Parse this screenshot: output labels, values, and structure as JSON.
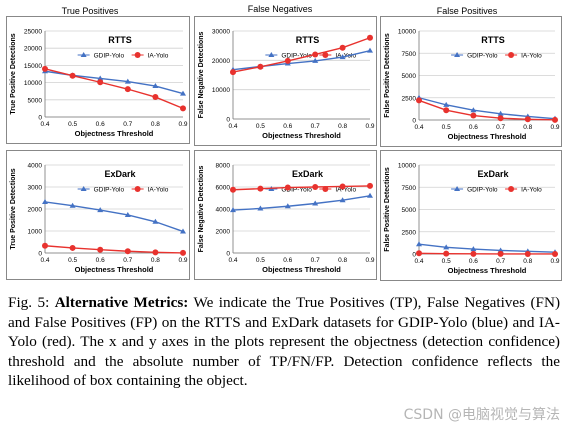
{
  "columns": [
    "True Positives",
    "False Negatives",
    "False Positives"
  ],
  "xlabel": "Objectness Threshold",
  "legend": {
    "blue": "GDIP-Yolo",
    "red": "IA-Yolo"
  },
  "colors": {
    "blue": "#4472c4",
    "red": "#e8322e"
  },
  "chart_data": [
    {
      "type": "line",
      "title": "RTTS",
      "ylabel": "True Positive Detections",
      "x": [
        0.4,
        0.5,
        0.6,
        0.7,
        0.8,
        0.9
      ],
      "xticks": [
        "0.4",
        "0.5",
        "0.6",
        "0.7",
        "0.8",
        "0.9"
      ],
      "ylim": [
        0,
        25000
      ],
      "yticks": [
        0,
        5000,
        10000,
        15000,
        20000,
        25000
      ],
      "ytick_labels": [
        "0",
        "5000",
        "10000",
        "15000",
        "20000",
        "25000"
      ],
      "series": [
        {
          "name": "GDIP-Yolo",
          "color": "blue",
          "marker": "triangle",
          "values": [
            13300,
            12100,
            11200,
            10300,
            9000,
            6800
          ]
        },
        {
          "name": "IA-Yolo",
          "color": "red",
          "marker": "circle",
          "values": [
            14000,
            12000,
            10100,
            8100,
            5800,
            2500
          ]
        }
      ]
    },
    {
      "type": "line",
      "title": "RTTS",
      "ylabel": "False Negative Detections",
      "x": [
        0.4,
        0.5,
        0.6,
        0.7,
        0.8,
        0.9
      ],
      "xticks": [
        "0.4",
        "0.5",
        "0.6",
        "0.7",
        "0.8",
        "0.9"
      ],
      "ylim": [
        0,
        30000
      ],
      "yticks": [
        0,
        10000,
        20000,
        30000
      ],
      "ytick_labels": [
        "0",
        "10000",
        "20000",
        "30000"
      ],
      "series": [
        {
          "name": "GDIP-Yolo",
          "color": "blue",
          "marker": "triangle",
          "values": [
            16800,
            17900,
            18900,
            19800,
            21100,
            23300
          ]
        },
        {
          "name": "IA-Yolo",
          "color": "red",
          "marker": "circle",
          "values": [
            16000,
            17800,
            19800,
            22000,
            24300,
            27700
          ]
        }
      ]
    },
    {
      "type": "line",
      "title": "RTTS",
      "ylabel": "False Positive Detections",
      "x": [
        0.4,
        0.5,
        0.6,
        0.7,
        0.8,
        0.9
      ],
      "xticks": [
        "0.4",
        "0.5",
        "0.6",
        "0.7",
        "0.8",
        "0.9"
      ],
      "ylim": [
        0,
        10000
      ],
      "yticks": [
        0,
        2500,
        5000,
        7500,
        10000
      ],
      "ytick_labels": [
        "0",
        "2500",
        "5000",
        "7500",
        "10000"
      ],
      "series": [
        {
          "name": "GDIP-Yolo",
          "color": "blue",
          "marker": "triangle",
          "values": [
            2500,
            1700,
            1100,
            700,
            400,
            150
          ]
        },
        {
          "name": "IA-Yolo",
          "color": "red",
          "marker": "circle",
          "values": [
            2200,
            1100,
            500,
            200,
            80,
            20
          ]
        }
      ]
    },
    {
      "type": "line",
      "title": "ExDark",
      "ylabel": "True Positive Detections",
      "x": [
        0.4,
        0.5,
        0.6,
        0.7,
        0.8,
        0.9
      ],
      "xticks": [
        "0.4",
        "0.5",
        "0.6",
        "0.7",
        "0.8",
        "0.9"
      ],
      "ylim": [
        0,
        4000
      ],
      "yticks": [
        0,
        1000,
        2000,
        3000,
        4000
      ],
      "ytick_labels": [
        "0",
        "1000",
        "2000",
        "3000",
        "4000"
      ],
      "series": [
        {
          "name": "GDIP-Yolo",
          "color": "blue",
          "marker": "triangle",
          "values": [
            2320,
            2150,
            1950,
            1730,
            1420,
            980
          ]
        },
        {
          "name": "IA-Yolo",
          "color": "red",
          "marker": "circle",
          "values": [
            330,
            230,
            150,
            80,
            30,
            5
          ]
        }
      ]
    },
    {
      "type": "line",
      "title": "ExDark",
      "ylabel": "False Negative Detections",
      "x": [
        0.4,
        0.5,
        0.6,
        0.7,
        0.8,
        0.9
      ],
      "xticks": [
        "0.4",
        "0.5",
        "0.6",
        "0.7",
        "0.8",
        "0.9"
      ],
      "ylim": [
        0,
        8000
      ],
      "yticks": [
        0,
        2000,
        4000,
        6000,
        8000
      ],
      "ytick_labels": [
        "0",
        "2000",
        "4000",
        "6000",
        "8000"
      ],
      "series": [
        {
          "name": "GDIP-Yolo",
          "color": "blue",
          "marker": "triangle",
          "values": [
            3900,
            4050,
            4250,
            4500,
            4800,
            5200
          ]
        },
        {
          "name": "IA-Yolo",
          "color": "red",
          "marker": "circle",
          "values": [
            5750,
            5850,
            5950,
            6000,
            6050,
            6100
          ]
        }
      ]
    },
    {
      "type": "line",
      "title": "ExDark",
      "ylabel": "False Positive Detections",
      "x": [
        0.4,
        0.5,
        0.6,
        0.7,
        0.8,
        0.9
      ],
      "xticks": [
        "0.4",
        "0.5",
        "0.6",
        "0.7",
        "0.8",
        "0.9"
      ],
      "ylim": [
        0,
        10000
      ],
      "yticks": [
        0,
        2500,
        5000,
        7500,
        10000
      ],
      "ytick_labels": [
        "0",
        "2500",
        "5000",
        "7500",
        "10000"
      ],
      "series": [
        {
          "name": "GDIP-Yolo",
          "color": "blue",
          "marker": "triangle",
          "values": [
            1100,
            750,
            550,
            400,
            300,
            200
          ]
        },
        {
          "name": "IA-Yolo",
          "color": "red",
          "marker": "circle",
          "values": [
            80,
            40,
            20,
            10,
            5,
            2
          ]
        }
      ]
    }
  ],
  "caption": {
    "label": "Fig. 5: ",
    "bold": "Alternative Metrics:",
    "text": " We indicate the True Positives (TP), False Negatives (FN) and False Positives (FP) on the RTTS and ExDark datasets for GDIP-Yolo (blue) and IA-Yolo (red). The x and y axes in the plots represent the objectness (detection confidence) threshold and the absolute number of TP/FN/FP. Detection confidence reflects the likelihood of box containing the object."
  },
  "watermark": "CSDN @电脑视觉与算法"
}
